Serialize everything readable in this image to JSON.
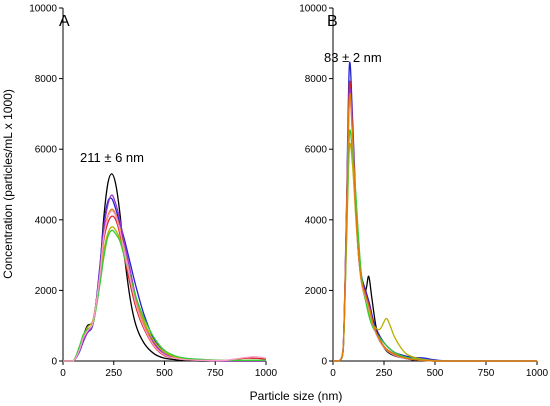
{
  "figure": {
    "ylabel": "Concentration (particles/mL x 1000)",
    "xlabel": "Particle size (nm)"
  },
  "chart_data": [
    {
      "type": "line",
      "panel_label": "A",
      "annotation": "211 ± 6 nm",
      "xlim": [
        0,
        1000
      ],
      "ylim": [
        0,
        10000
      ],
      "x_ticks": [
        "0",
        "250",
        "500",
        "750",
        "1000"
      ],
      "y_ticks": [
        "0",
        "2000",
        "4000",
        "6000",
        "8000",
        "10000"
      ],
      "x_tick_values": [
        0,
        250,
        500,
        750,
        1000
      ],
      "y_tick_values": [
        0,
        2000,
        4000,
        6000,
        8000,
        10000
      ],
      "series": [
        {
          "color": "#000000",
          "x": [
            0,
            50,
            80,
            100,
            120,
            150,
            180,
            200,
            220,
            240,
            260,
            280,
            300,
            330,
            360,
            400,
            450,
            500,
            550,
            600,
            700,
            800,
            1000
          ],
          "y": [
            0,
            0,
            300,
            700,
            1000,
            1200,
            2500,
            4000,
            5000,
            5300,
            5000,
            4200,
            3100,
            1800,
            1000,
            500,
            200,
            80,
            40,
            20,
            0,
            0,
            0
          ]
        },
        {
          "color": "#d62728",
          "x": [
            0,
            50,
            80,
            100,
            120,
            150,
            180,
            200,
            220,
            240,
            260,
            280,
            300,
            330,
            360,
            400,
            450,
            500,
            550,
            600,
            700,
            800,
            900,
            1000
          ],
          "y": [
            0,
            0,
            300,
            600,
            800,
            1100,
            2300,
            3400,
            3900,
            4100,
            4000,
            3600,
            3000,
            2200,
            1500,
            900,
            400,
            150,
            80,
            40,
            20,
            20,
            80,
            60
          ]
        },
        {
          "color": "#2222cc",
          "x": [
            0,
            50,
            80,
            100,
            120,
            150,
            180,
            200,
            220,
            240,
            260,
            280,
            300,
            330,
            360,
            400,
            450,
            500,
            550,
            600,
            700,
            800,
            1000
          ],
          "y": [
            0,
            0,
            250,
            550,
            800,
            1100,
            2600,
            3800,
            4500,
            4600,
            4300,
            3900,
            3500,
            2800,
            2100,
            1300,
            600,
            250,
            100,
            50,
            20,
            0,
            0
          ]
        },
        {
          "color": "#e07b00",
          "x": [
            0,
            50,
            80,
            100,
            120,
            150,
            180,
            200,
            220,
            240,
            260,
            280,
            300,
            330,
            360,
            400,
            450,
            500,
            550,
            600,
            700,
            800,
            1000
          ],
          "y": [
            0,
            0,
            300,
            600,
            850,
            1150,
            2400,
            3600,
            4100,
            4300,
            4150,
            3750,
            3200,
            2400,
            1650,
            1000,
            450,
            180,
            80,
            40,
            20,
            0,
            0
          ]
        },
        {
          "color": "#9932cc",
          "x": [
            0,
            50,
            80,
            100,
            120,
            150,
            180,
            200,
            220,
            240,
            260,
            280,
            300,
            330,
            360,
            400,
            450,
            500,
            550,
            600,
            700,
            800,
            1000
          ],
          "y": [
            0,
            0,
            280,
            580,
            820,
            1120,
            2500,
            3700,
            4400,
            4700,
            4450,
            4000,
            3400,
            2600,
            1800,
            1100,
            500,
            200,
            90,
            40,
            20,
            0,
            0
          ]
        },
        {
          "color": "#b8b000",
          "x": [
            0,
            50,
            80,
            100,
            120,
            150,
            180,
            200,
            220,
            240,
            260,
            280,
            300,
            330,
            360,
            400,
            450,
            500,
            550,
            600,
            700,
            800,
            1000
          ],
          "y": [
            0,
            0,
            350,
            700,
            950,
            1200,
            2300,
            3100,
            3600,
            3800,
            3700,
            3450,
            3050,
            2400,
            1800,
            1100,
            550,
            250,
            120,
            60,
            30,
            20,
            20
          ]
        },
        {
          "color": "#33cc33",
          "x": [
            0,
            50,
            80,
            100,
            120,
            150,
            180,
            200,
            220,
            240,
            260,
            280,
            300,
            330,
            360,
            400,
            450,
            500,
            550,
            600,
            700,
            800,
            1000
          ],
          "y": [
            0,
            0,
            400,
            750,
            900,
            1100,
            2100,
            2900,
            3500,
            3700,
            3600,
            3400,
            3000,
            2400,
            1800,
            1200,
            650,
            300,
            150,
            80,
            40,
            20,
            20
          ]
        },
        {
          "color": "#ff99cc",
          "x": [
            0,
            50,
            80,
            100,
            120,
            150,
            180,
            200,
            220,
            240,
            260,
            280,
            300,
            330,
            360,
            400,
            450,
            500,
            550,
            600,
            700,
            800,
            900,
            950,
            1000
          ],
          "y": [
            0,
            0,
            300,
            650,
            850,
            1150,
            2350,
            3500,
            4050,
            4250,
            4100,
            3700,
            3150,
            2350,
            1600,
            950,
            420,
            170,
            80,
            40,
            20,
            20,
            100,
            120,
            80
          ]
        }
      ]
    },
    {
      "type": "line",
      "panel_label": "B",
      "annotation": "83 ± 2 nm",
      "xlim": [
        0,
        1000
      ],
      "ylim": [
        0,
        10000
      ],
      "x_ticks": [
        "0",
        "250",
        "500",
        "750",
        "1000"
      ],
      "y_ticks": [
        "0",
        "2000",
        "4000",
        "6000",
        "8000",
        "10000"
      ],
      "x_tick_values": [
        0,
        250,
        500,
        750,
        1000
      ],
      "y_tick_values": [
        0,
        2000,
        4000,
        6000,
        8000,
        10000
      ],
      "series": [
        {
          "color": "#000000",
          "x": [
            0,
            30,
            50,
            65,
            80,
            95,
            110,
            125,
            140,
            160,
            175,
            190,
            210,
            230,
            260,
            300,
            350,
            400,
            450,
            500,
            600,
            1000
          ],
          "y": [
            0,
            0,
            300,
            3500,
            7500,
            6500,
            4500,
            3000,
            2300,
            2000,
            2400,
            1800,
            1000,
            600,
            300,
            150,
            80,
            30,
            10,
            0,
            0,
            0
          ]
        },
        {
          "color": "#2222cc",
          "x": [
            0,
            30,
            50,
            65,
            80,
            95,
            110,
            125,
            140,
            160,
            180,
            200,
            230,
            260,
            300,
            350,
            400,
            450,
            500,
            600,
            1000
          ],
          "y": [
            0,
            0,
            400,
            4000,
            8350,
            7000,
            4800,
            3200,
            2400,
            2000,
            1600,
            1100,
            700,
            450,
            250,
            150,
            100,
            80,
            30,
            0,
            0
          ]
        },
        {
          "color": "#d62728",
          "x": [
            0,
            30,
            50,
            65,
            80,
            95,
            110,
            125,
            140,
            160,
            180,
            200,
            230,
            260,
            300,
            350,
            400,
            450,
            500,
            600,
            1000
          ],
          "y": [
            0,
            0,
            350,
            3800,
            7800,
            6700,
            4600,
            3100,
            2300,
            1900,
            1500,
            1000,
            600,
            350,
            200,
            100,
            50,
            20,
            0,
            0,
            0
          ]
        },
        {
          "color": "#9932cc",
          "x": [
            0,
            30,
            50,
            65,
            80,
            95,
            110,
            125,
            140,
            160,
            180,
            200,
            230,
            260,
            300,
            350,
            400,
            450,
            500,
            600,
            1000
          ],
          "y": [
            0,
            0,
            350,
            3700,
            7600,
            6600,
            4500,
            3050,
            2250,
            1850,
            1450,
            950,
            550,
            330,
            180,
            90,
            40,
            20,
            0,
            0,
            0
          ]
        },
        {
          "color": "#b8b000",
          "x": [
            0,
            30,
            50,
            65,
            80,
            95,
            110,
            125,
            140,
            160,
            180,
            200,
            230,
            260,
            280,
            300,
            330,
            360,
            400,
            450,
            500,
            600,
            1000
          ],
          "y": [
            0,
            0,
            300,
            3000,
            6000,
            5600,
            4200,
            3000,
            2200,
            1700,
            1300,
            1000,
            900,
            1200,
            1000,
            700,
            400,
            200,
            100,
            40,
            10,
            0,
            0
          ]
        },
        {
          "color": "#33cc33",
          "x": [
            0,
            30,
            50,
            65,
            80,
            95,
            110,
            125,
            140,
            160,
            180,
            200,
            230,
            260,
            300,
            350,
            400,
            450,
            500,
            600,
            1000
          ],
          "y": [
            0,
            0,
            300,
            3200,
            6400,
            5900,
            4900,
            3500,
            2400,
            1700,
            1200,
            900,
            650,
            450,
            250,
            120,
            60,
            20,
            0,
            0,
            0
          ]
        },
        {
          "color": "#ff99cc",
          "x": [
            0,
            30,
            50,
            65,
            80,
            95,
            110,
            125,
            140,
            160,
            180,
            200,
            230,
            260,
            300,
            350,
            400,
            450,
            500,
            600,
            1000
          ],
          "y": [
            0,
            0,
            350,
            3600,
            7300,
            6400,
            4400,
            3000,
            2200,
            1800,
            1400,
            950,
            550,
            320,
            170,
            80,
            40,
            15,
            0,
            0,
            0
          ]
        },
        {
          "color": "#e07b00",
          "x": [
            0,
            30,
            50,
            65,
            80,
            95,
            110,
            125,
            140,
            160,
            180,
            200,
            230,
            260,
            300,
            350,
            400,
            450,
            500,
            600,
            1000
          ],
          "y": [
            0,
            0,
            330,
            3650,
            7450,
            6500,
            4450,
            3050,
            2250,
            1850,
            1450,
            980,
            580,
            340,
            190,
            90,
            40,
            15,
            0,
            0,
            0
          ]
        }
      ]
    }
  ]
}
